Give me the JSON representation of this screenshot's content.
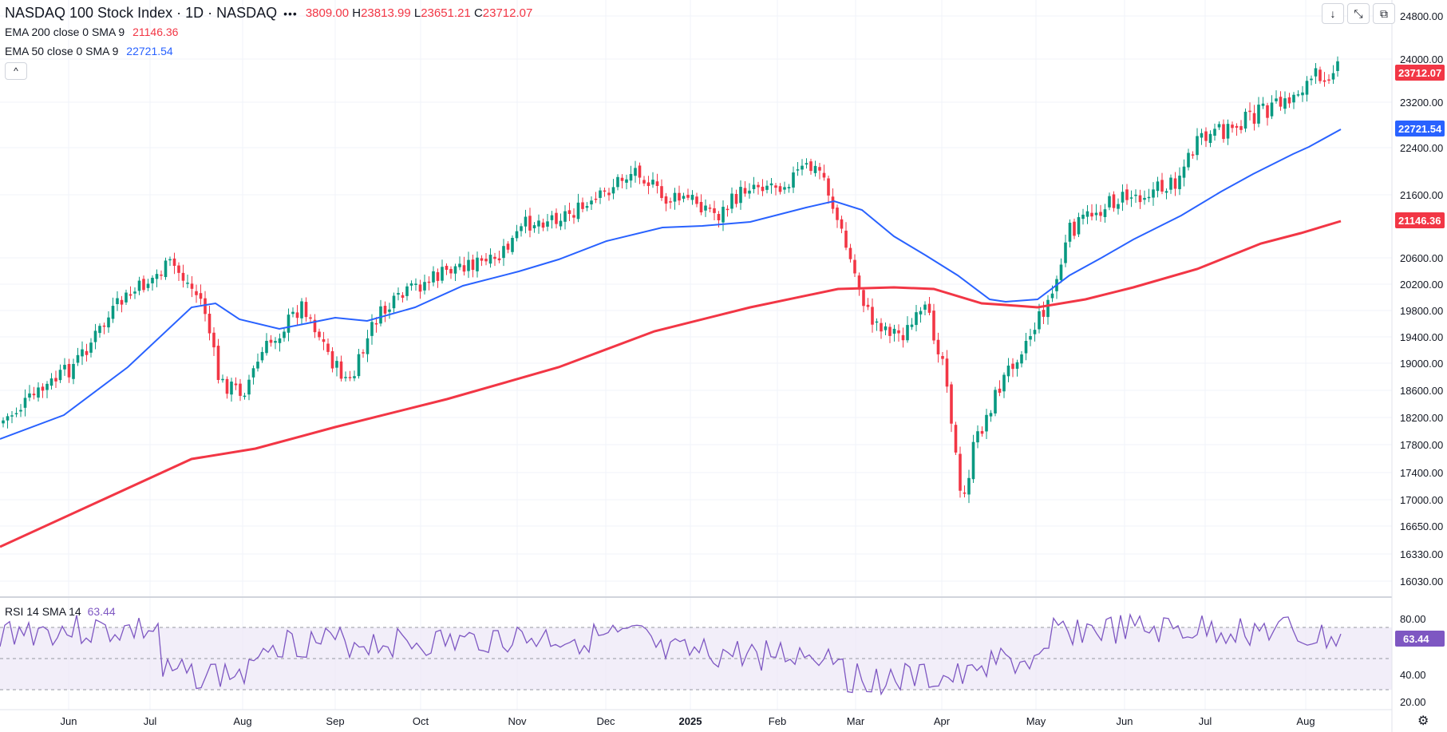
{
  "header": {
    "symbol_title": "NASDAQ 100 Stock Index · 1D · NASDAQ",
    "more_label": "•••",
    "ohlc": [
      {
        "key": "",
        "value": "3809.00"
      },
      {
        "key": "H",
        "value": "23813.99"
      },
      {
        "key": "L",
        "value": "23651.21"
      },
      {
        "key": "C",
        "value": "23712.07"
      }
    ]
  },
  "indicators": [
    {
      "label": "EMA 200 close 0 SMA 9",
      "value": "21146.36",
      "color": "#f23645"
    },
    {
      "label": "EMA 50 close 0 SMA 9",
      "value": "22721.54",
      "color": "#2962ff"
    }
  ],
  "collapse_icon": "chevron-up-icon",
  "toolbar": {
    "buttons": [
      {
        "name": "scroll-down-icon",
        "glyph": "↓"
      },
      {
        "name": "collapse-pane-icon",
        "glyph": "⤡"
      },
      {
        "name": "maximize-pane-icon",
        "glyph": "⧉"
      }
    ]
  },
  "price_axis": {
    "ticks": [
      "24800.00",
      "24000.00",
      "23200.00",
      "22400.00",
      "21600.00",
      "20600.00",
      "20200.00",
      "19800.00",
      "19400.00",
      "19000.00",
      "18600.00",
      "18200.00",
      "17800.00",
      "17400.00",
      "17000.00",
      "16650.00",
      "16330.00",
      "16030.00"
    ],
    "badges": [
      {
        "text": "23712.07",
        "color": "#f23645"
      },
      {
        "text": "22721.54",
        "color": "#2962ff"
      },
      {
        "text": "21146.36",
        "color": "#f23645"
      }
    ]
  },
  "rsi": {
    "label": "RSI 14 SMA 14",
    "value": "63.44",
    "ticks": [
      "80.00",
      "40.00",
      "20.00"
    ],
    "color": "#7e57c2"
  },
  "time_axis": {
    "labels": [
      "Jun",
      "Jul",
      "Aug",
      "Sep",
      "Oct",
      "Nov",
      "Dec",
      "2025",
      "Feb",
      "Mar",
      "Apr",
      "May",
      "Jun",
      "Jul",
      "Aug"
    ]
  },
  "colors": {
    "up": "#089981",
    "down": "#f23645",
    "ema50": "#2962ff",
    "ema200": "#f23645",
    "grid": "#f0f3fa"
  },
  "settings_icon": "gear-icon"
}
